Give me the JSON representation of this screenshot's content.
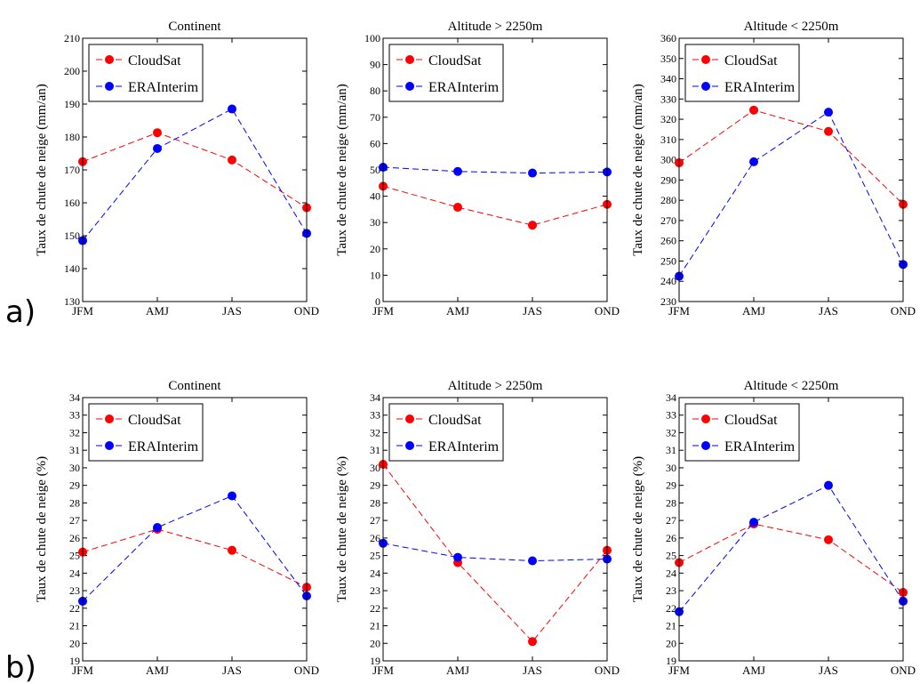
{
  "figure": {
    "row_labels": [
      "a)",
      "b)"
    ],
    "colors": {
      "cloudsat": "#ff0000",
      "erainterim": "#0000ff"
    }
  },
  "chart_data": [
    {
      "type": "line",
      "title": "Continent",
      "ylabel": "Taux de chute de neige (mm/an)",
      "categories": [
        "JFM",
        "AMJ",
        "JAS",
        "OND"
      ],
      "ylim": [
        130,
        210
      ],
      "yticks": [
        130,
        140,
        150,
        160,
        170,
        180,
        190,
        200,
        210
      ],
      "legend": "top-left",
      "grid": false,
      "series": [
        {
          "name": "CloudSat",
          "values": [
            172.5,
            181.3,
            173.0,
            158.5
          ],
          "color": "#ff0000"
        },
        {
          "name": "ERAInterim",
          "values": [
            148.5,
            176.5,
            188.5,
            150.7
          ],
          "color": "#0000ff"
        }
      ]
    },
    {
      "type": "line",
      "title": "Altitude > 2250m",
      "ylabel": "Taux de chute de neige (mm/an)",
      "categories": [
        "JFM",
        "AMJ",
        "JAS",
        "OND"
      ],
      "ylim": [
        0,
        100
      ],
      "yticks": [
        0,
        10,
        20,
        30,
        40,
        50,
        60,
        70,
        80,
        90,
        100
      ],
      "legend": "top-left",
      "grid": false,
      "series": [
        {
          "name": "CloudSat",
          "values": [
            43.8,
            35.8,
            29.0,
            36.9
          ],
          "color": "#ff0000"
        },
        {
          "name": "ERAInterim",
          "values": [
            51.0,
            49.4,
            48.8,
            49.2
          ],
          "color": "#0000ff"
        }
      ]
    },
    {
      "type": "line",
      "title": "Altitude < 2250m",
      "ylabel": "Taux de chute de neige (mm/an)",
      "categories": [
        "JFM",
        "AMJ",
        "JAS",
        "OND"
      ],
      "ylim": [
        230,
        360
      ],
      "yticks": [
        230,
        240,
        250,
        260,
        270,
        280,
        290,
        300,
        310,
        320,
        330,
        340,
        350,
        360
      ],
      "legend": "top-left",
      "grid": false,
      "series": [
        {
          "name": "CloudSat",
          "values": [
            298.5,
            324.5,
            314.0,
            278.0
          ],
          "color": "#ff0000"
        },
        {
          "name": "ERAInterim",
          "values": [
            242.5,
            299.0,
            323.5,
            248.3
          ],
          "color": "#0000ff"
        }
      ]
    },
    {
      "type": "line",
      "title": "Continent",
      "ylabel": "Taux de chute de neige (%)",
      "categories": [
        "JFM",
        "AMJ",
        "JAS",
        "OND"
      ],
      "ylim": [
        19,
        34
      ],
      "yticks": [
        19,
        20,
        21,
        22,
        23,
        24,
        25,
        26,
        27,
        28,
        29,
        30,
        31,
        32,
        33,
        34
      ],
      "legend": "top-left",
      "grid": false,
      "series": [
        {
          "name": "CloudSat",
          "values": [
            25.2,
            26.5,
            25.3,
            23.2
          ],
          "color": "#ff0000"
        },
        {
          "name": "ERAInterim",
          "values": [
            22.4,
            26.6,
            28.4,
            22.7
          ],
          "color": "#0000ff"
        }
      ]
    },
    {
      "type": "line",
      "title": "Altitude > 2250m",
      "ylabel": "Taux de chute de neige (%)",
      "categories": [
        "JFM",
        "AMJ",
        "JAS",
        "OND"
      ],
      "ylim": [
        19,
        34
      ],
      "yticks": [
        19,
        20,
        21,
        22,
        23,
        24,
        25,
        26,
        27,
        28,
        29,
        30,
        31,
        32,
        33,
        34
      ],
      "legend": "top-left",
      "grid": false,
      "series": [
        {
          "name": "CloudSat",
          "values": [
            30.2,
            24.6,
            20.1,
            25.3
          ],
          "color": "#ff0000"
        },
        {
          "name": "ERAInterim",
          "values": [
            25.7,
            24.9,
            24.7,
            24.8
          ],
          "color": "#0000ff"
        }
      ]
    },
    {
      "type": "line",
      "title": "Altitude < 2250m",
      "ylabel": "Taux de chute de neige (%)",
      "categories": [
        "JFM",
        "AMJ",
        "JAS",
        "OND"
      ],
      "ylim": [
        19,
        34
      ],
      "yticks": [
        19,
        20,
        21,
        22,
        23,
        24,
        25,
        26,
        27,
        28,
        29,
        30,
        31,
        32,
        33,
        34
      ],
      "legend": "top-left",
      "grid": false,
      "series": [
        {
          "name": "CloudSat",
          "values": [
            24.6,
            26.8,
            25.9,
            22.9
          ],
          "color": "#ff0000"
        },
        {
          "name": "ERAInterim",
          "values": [
            21.8,
            26.9,
            29.0,
            22.4
          ],
          "color": "#0000ff"
        }
      ]
    }
  ]
}
